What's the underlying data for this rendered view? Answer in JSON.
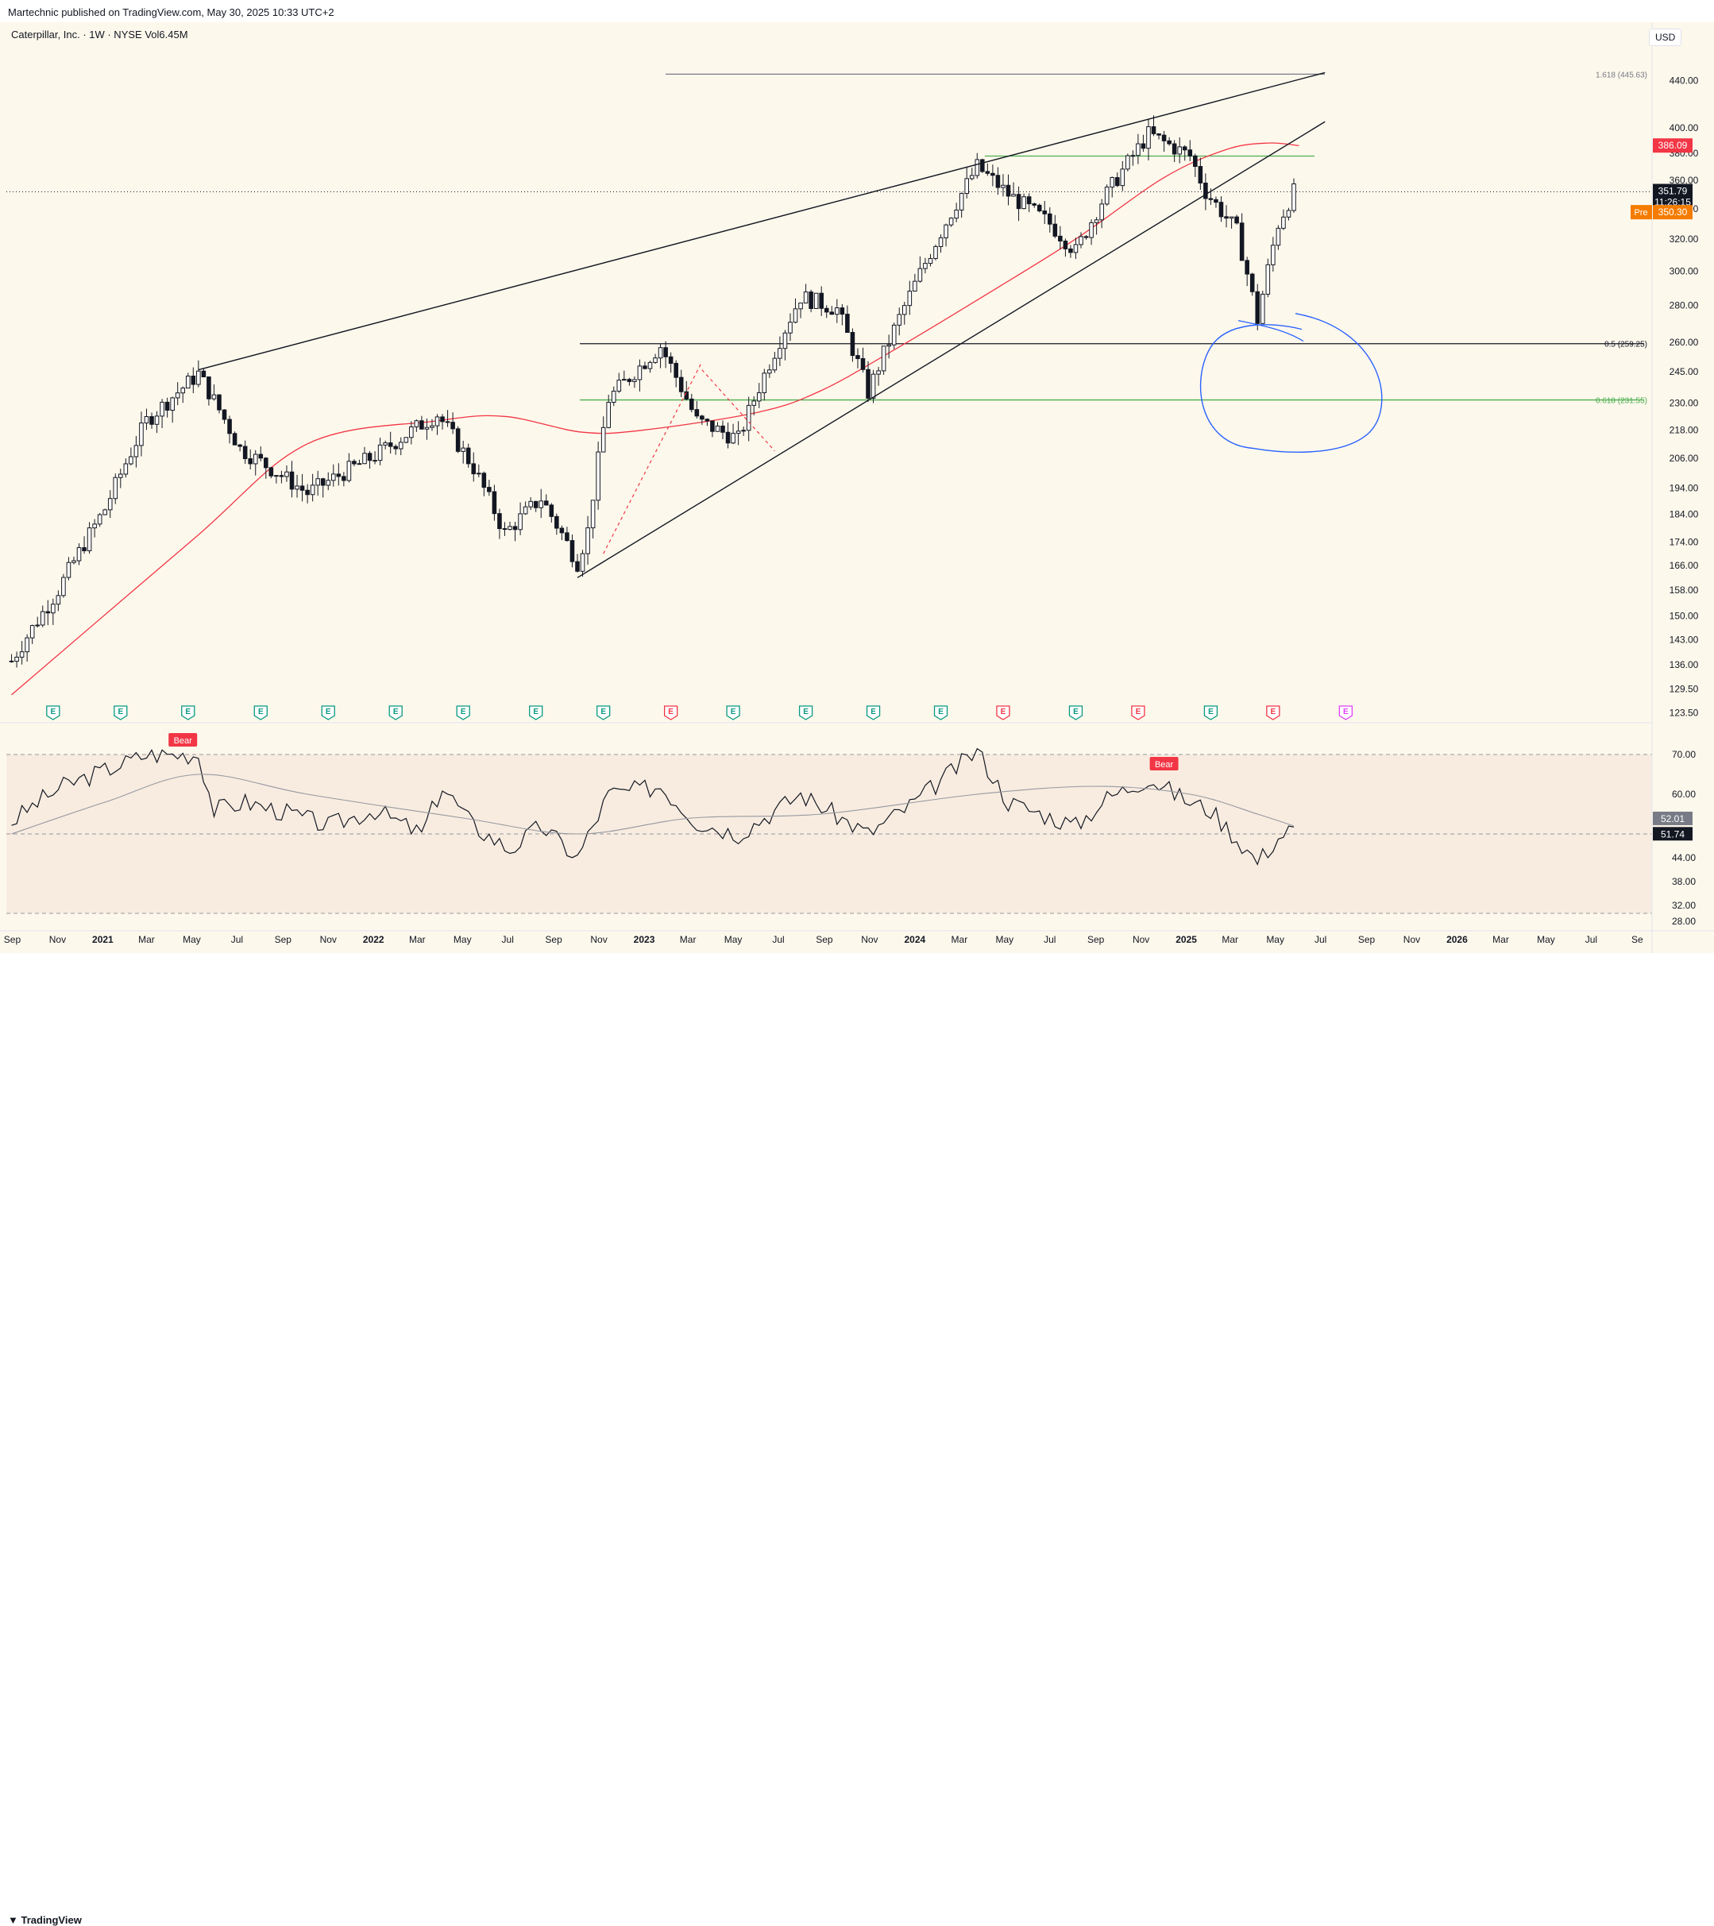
{
  "header": {
    "published": "Martechnic published on TradingView.com, May 30, 2025 10:33 UTC+2",
    "symbol": "Caterpillar, Inc. · 1W · NYSE  Vol6.45M",
    "currency": "USD"
  },
  "footer": {
    "logo_icon": "tradingview-logo-icon",
    "logo_text": "TradingView"
  },
  "colors": {
    "background": "#fdf8ec",
    "ma": "#f23645",
    "support_green": "#4caf50",
    "circle": "#2962ff",
    "bear": "#f23645",
    "pre": "#f57c00"
  },
  "chart_data": [
    {
      "type": "candlestick",
      "title": "Caterpillar, Inc. · 1W · NYSE",
      "volume": "Vol6.45M",
      "price_scale": "log",
      "x_ticks": [
        "Sep",
        "Nov",
        "2021",
        "Mar",
        "May",
        "Jul",
        "Sep",
        "Nov",
        "2022",
        "Mar",
        "May",
        "Jul",
        "Sep",
        "Nov",
        "2023",
        "Mar",
        "May",
        "Jul",
        "Sep",
        "Nov",
        "2024",
        "Mar",
        "May",
        "Jul",
        "Sep",
        "Nov",
        "2025",
        "Mar",
        "May",
        "Jul",
        "Sep",
        "Nov",
        "2026",
        "Mar",
        "May",
        "Jul",
        "Se"
      ],
      "y_ticks": [
        440.0,
        400.0,
        380.0,
        360.0,
        340.0,
        320.0,
        300.0,
        280.0,
        260.0,
        245.0,
        230.0,
        218.0,
        206.0,
        194.0,
        184.0,
        174.0,
        166.0,
        158.0,
        150.0,
        143.0,
        136.0,
        129.5,
        123.5
      ],
      "x_range": [
        "2020-08-24",
        "2026-09-21"
      ],
      "y_range": [
        122,
        470
      ],
      "key_points": [
        {
          "date": "2020-08-31",
          "price": 137
        },
        {
          "date": "2020-11-02",
          "price": 158
        },
        {
          "date": "2021-01-04",
          "price": 186
        },
        {
          "date": "2021-03-01",
          "price": 222
        },
        {
          "date": "2021-05-10",
          "price": 244
        },
        {
          "date": "2021-07-05",
          "price": 210
        },
        {
          "date": "2021-10-04",
          "price": 192
        },
        {
          "date": "2022-01-03",
          "price": 207
        },
        {
          "date": "2022-03-28",
          "price": 225
        },
        {
          "date": "2022-05-16",
          "price": 202
        },
        {
          "date": "2022-06-27",
          "price": 177
        },
        {
          "date": "2022-08-15",
          "price": 190
        },
        {
          "date": "2022-10-03",
          "price": 167
        },
        {
          "date": "2022-10-17",
          "price": 178
        },
        {
          "date": "2022-11-14",
          "price": 232
        },
        {
          "date": "2023-01-23",
          "price": 258
        },
        {
          "date": "2023-03-13",
          "price": 222
        },
        {
          "date": "2023-05-08",
          "price": 214
        },
        {
          "date": "2023-07-31",
          "price": 285
        },
        {
          "date": "2023-09-18",
          "price": 278
        },
        {
          "date": "2023-10-30",
          "price": 235
        },
        {
          "date": "2024-01-01",
          "price": 292
        },
        {
          "date": "2024-03-25",
          "price": 370
        },
        {
          "date": "2024-05-06",
          "price": 350
        },
        {
          "date": "2024-07-01",
          "price": 330
        },
        {
          "date": "2024-08-05",
          "price": 312
        },
        {
          "date": "2024-09-09",
          "price": 345
        },
        {
          "date": "2024-11-11",
          "price": 395
        },
        {
          "date": "2025-01-06",
          "price": 378
        },
        {
          "date": "2025-01-27",
          "price": 352
        },
        {
          "date": "2025-03-10",
          "price": 325
        },
        {
          "date": "2025-04-07",
          "price": 272
        },
        {
          "date": "2025-05-05",
          "price": 330
        },
        {
          "date": "2025-05-26",
          "price": 351.79
        }
      ],
      "moving_average": {
        "color": "#f23645",
        "value": 386.09,
        "points": [
          {
            "date": "2020-08-31",
            "price": 128
          },
          {
            "date": "2021-05-03",
            "price": 175
          },
          {
            "date": "2021-10-04",
            "price": 212
          },
          {
            "date": "2022-03-28",
            "price": 222
          },
          {
            "date": "2022-06-27",
            "price": 224
          },
          {
            "date": "2022-10-10",
            "price": 217
          },
          {
            "date": "2023-01-02",
            "price": 218
          },
          {
            "date": "2023-06-05",
            "price": 226
          },
          {
            "date": "2023-08-28",
            "price": 236
          },
          {
            "date": "2023-12-04",
            "price": 256
          },
          {
            "date": "2024-03-25",
            "price": 283
          },
          {
            "date": "2024-08-05",
            "price": 320
          },
          {
            "date": "2024-12-02",
            "price": 362
          },
          {
            "date": "2025-02-24",
            "price": 383
          },
          {
            "date": "2025-04-21",
            "price": 388
          },
          {
            "date": "2025-06-02",
            "price": 386
          }
        ]
      },
      "trendlines": [
        {
          "name": "upper-wedge",
          "from": {
            "date": "2021-05-10",
            "price": 246
          },
          "to": {
            "date": "2025-07-07",
            "price": 447
          }
        },
        {
          "name": "lower-wedge",
          "from": {
            "date": "2022-10-03",
            "price": 162
          },
          "to": {
            "date": "2025-07-07",
            "price": 405
          }
        },
        {
          "name": "dashed-rally",
          "from": {
            "date": "2022-11-07",
            "price": 170
          },
          "to": {
            "date": "2023-03-20",
            "price": 250
          }
        },
        {
          "name": "dashed-pullback",
          "from": {
            "date": "2023-03-20",
            "price": 246
          },
          "to": {
            "date": "2023-06-26",
            "price": 209
          }
        }
      ],
      "horizontal_levels": [
        {
          "label": "1.618 (445.63)",
          "price": 445.63,
          "color": "#787b86"
        },
        {
          "label": "",
          "price": 378,
          "color": "#4caf50"
        },
        {
          "label": "0.5 (259.25)",
          "price": 259.25,
          "color": "#131722"
        },
        {
          "label": "0.618 (231.55)",
          "price": 231.55,
          "color": "#4caf50"
        }
      ],
      "price_labels": [
        {
          "label": "386.09",
          "price": 386.09,
          "color": "#f23645"
        },
        {
          "label": "351.79",
          "sub": "11:26:15",
          "price": 351.79,
          "color": "#131722"
        },
        {
          "label": "350.30",
          "prefix": "Pre",
          "price": 350.3,
          "color": "#f57c00"
        }
      ],
      "earnings": [
        {
          "date": "2020-10-26",
          "kind": "reported"
        },
        {
          "date": "2021-01-25",
          "kind": "reported"
        },
        {
          "date": "2021-04-26",
          "kind": "reported"
        },
        {
          "date": "2021-08-02",
          "kind": "reported"
        },
        {
          "date": "2021-11-01",
          "kind": "reported"
        },
        {
          "date": "2022-01-31",
          "kind": "reported"
        },
        {
          "date": "2022-05-02",
          "kind": "reported"
        },
        {
          "date": "2022-08-08",
          "kind": "reported"
        },
        {
          "date": "2022-11-07",
          "kind": "reported"
        },
        {
          "date": "2023-02-06",
          "kind": "miss"
        },
        {
          "date": "2023-05-01",
          "kind": "reported"
        },
        {
          "date": "2023-08-07",
          "kind": "reported"
        },
        {
          "date": "2023-11-06",
          "kind": "reported"
        },
        {
          "date": "2024-02-05",
          "kind": "reported"
        },
        {
          "date": "2024-04-29",
          "kind": "miss"
        },
        {
          "date": "2024-08-05",
          "kind": "reported"
        },
        {
          "date": "2024-10-28",
          "kind": "miss"
        },
        {
          "date": "2025-02-03",
          "kind": "reported"
        },
        {
          "date": "2025-04-28",
          "kind": "miss"
        },
        {
          "date": "2025-08-04",
          "kind": "upcoming"
        }
      ],
      "earnings_letter": "E",
      "annotation_circle": {
        "center_date": "2025-05-26",
        "center_price": 233,
        "color": "#2962ff"
      }
    },
    {
      "type": "line",
      "title": "",
      "y_ticks": [
        70.0,
        60.0,
        52.01,
        44.0,
        38.0,
        32.0,
        28.0
      ],
      "y_range": [
        26,
        73
      ],
      "bands": {
        "upper": 70,
        "middle": 50,
        "lower": 30
      },
      "oscillator_points": [
        {
          "date": "2020-08-31",
          "value": 53
        },
        {
          "date": "2020-10-05",
          "value": 58
        },
        {
          "date": "2020-11-09",
          "value": 62
        },
        {
          "date": "2021-01-04",
          "value": 66
        },
        {
          "date": "2021-03-01",
          "value": 70
        },
        {
          "date": "2021-05-10",
          "value": 70
        },
        {
          "date": "2021-05-31",
          "value": 56
        },
        {
          "date": "2021-07-12",
          "value": 58
        },
        {
          "date": "2021-09-13",
          "value": 55
        },
        {
          "date": "2021-11-01",
          "value": 52
        },
        {
          "date": "2022-01-03",
          "value": 56
        },
        {
          "date": "2022-03-07",
          "value": 50
        },
        {
          "date": "2022-04-04",
          "value": 62
        },
        {
          "date": "2022-05-16",
          "value": 52
        },
        {
          "date": "2022-07-04",
          "value": 46
        },
        {
          "date": "2022-08-15",
          "value": 52
        },
        {
          "date": "2022-10-03",
          "value": 44
        },
        {
          "date": "2022-11-14",
          "value": 60
        },
        {
          "date": "2023-01-23",
          "value": 62
        },
        {
          "date": "2023-03-13",
          "value": 53
        },
        {
          "date": "2023-05-08",
          "value": 50
        },
        {
          "date": "2023-07-31",
          "value": 60
        },
        {
          "date": "2023-10-30",
          "value": 50
        },
        {
          "date": "2024-01-01",
          "value": 58
        },
        {
          "date": "2024-03-25",
          "value": 71
        },
        {
          "date": "2024-05-06",
          "value": 58
        },
        {
          "date": "2024-08-05",
          "value": 52
        },
        {
          "date": "2024-09-16",
          "value": 59
        },
        {
          "date": "2024-11-11",
          "value": 64
        },
        {
          "date": "2025-01-06",
          "value": 58
        },
        {
          "date": "2025-02-03",
          "value": 56
        },
        {
          "date": "2025-04-07",
          "value": 43
        },
        {
          "date": "2025-05-05",
          "value": 49
        },
        {
          "date": "2025-05-26",
          "value": 51.74
        }
      ],
      "signal_points": [
        {
          "date": "2020-08-31",
          "value": 50
        },
        {
          "date": "2021-01-04",
          "value": 58
        },
        {
          "date": "2021-05-10",
          "value": 65
        },
        {
          "date": "2021-10-04",
          "value": 60
        },
        {
          "date": "2022-05-02",
          "value": 54
        },
        {
          "date": "2022-10-03",
          "value": 50
        },
        {
          "date": "2023-03-06",
          "value": 54
        },
        {
          "date": "2023-08-28",
          "value": 55
        },
        {
          "date": "2024-03-25",
          "value": 60
        },
        {
          "date": "2024-09-02",
          "value": 62
        },
        {
          "date": "2025-01-06",
          "value": 60
        },
        {
          "date": "2025-04-07",
          "value": 55
        },
        {
          "date": "2025-05-26",
          "value": 52.01
        }
      ],
      "value_labels": [
        {
          "label": "52.01",
          "value": 52.01,
          "color": "#787b86"
        },
        {
          "label": "51.74",
          "value": 51.74,
          "color": "#131722"
        }
      ],
      "signals": [
        {
          "label": "Bear",
          "date": "2021-04-19",
          "value": 72
        },
        {
          "label": "Bear",
          "date": "2024-12-02",
          "value": 66
        }
      ]
    }
  ]
}
